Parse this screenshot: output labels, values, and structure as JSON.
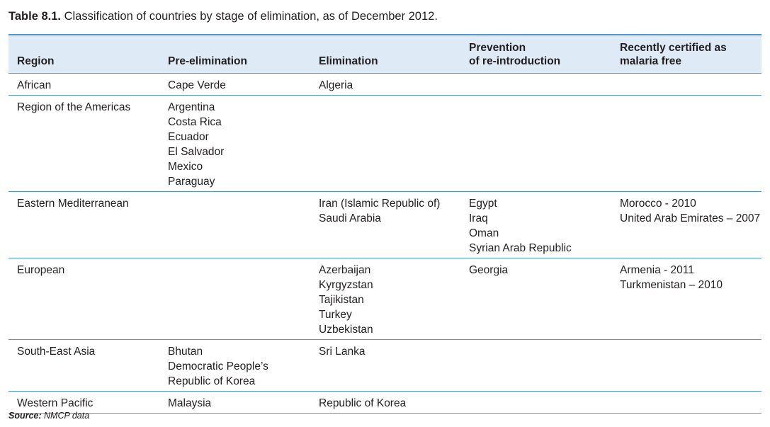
{
  "caption": {
    "label": "Table 8.1.",
    "text": " Classification of countries by stage of elimination, as of December 2012."
  },
  "headers": [
    [
      "Region"
    ],
    [
      "Pre-elimination"
    ],
    [
      "Elimination"
    ],
    [
      "Prevention",
      "of re-introduction"
    ],
    [
      "Recently certified as",
      "malaria free"
    ]
  ],
  "rows": [
    [
      [
        "African"
      ],
      [
        "Cape Verde"
      ],
      [
        "Algeria"
      ],
      [],
      []
    ],
    [
      [
        "Region of the Americas"
      ],
      [
        "Argentina",
        "Costa Rica",
        "Ecuador",
        "El Salvador",
        "Mexico",
        "Paraguay"
      ],
      [],
      [],
      []
    ],
    [
      [
        "Eastern Mediterranean"
      ],
      [],
      [
        "Iran (Islamic Republic of)",
        "Saudi Arabia"
      ],
      [
        "Egypt",
        "Iraq",
        "Oman",
        "Syrian Arab Republic"
      ],
      [
        "Morocco - 2010",
        "United Arab Emirates – 2007"
      ]
    ],
    [
      [
        "European"
      ],
      [],
      [
        "Azerbaijan",
        "Kyrgyzstan",
        "Tajikistan",
        "Turkey",
        "Uzbekistan"
      ],
      [
        "Georgia"
      ],
      [
        "Armenia - 2011",
        "Turkmenistan – 2010"
      ]
    ],
    [
      [
        "South-East Asia"
      ],
      [
        "Bhutan",
        "Democratic People’s",
        "Republic of Korea"
      ],
      [
        "Sri Lanka"
      ],
      [],
      []
    ],
    [
      [
        "Western Pacific"
      ],
      [
        "Malaysia"
      ],
      [
        "Republic of Korea"
      ],
      [],
      []
    ]
  ],
  "source": {
    "label": "Source:",
    "text": " NMCP data"
  }
}
